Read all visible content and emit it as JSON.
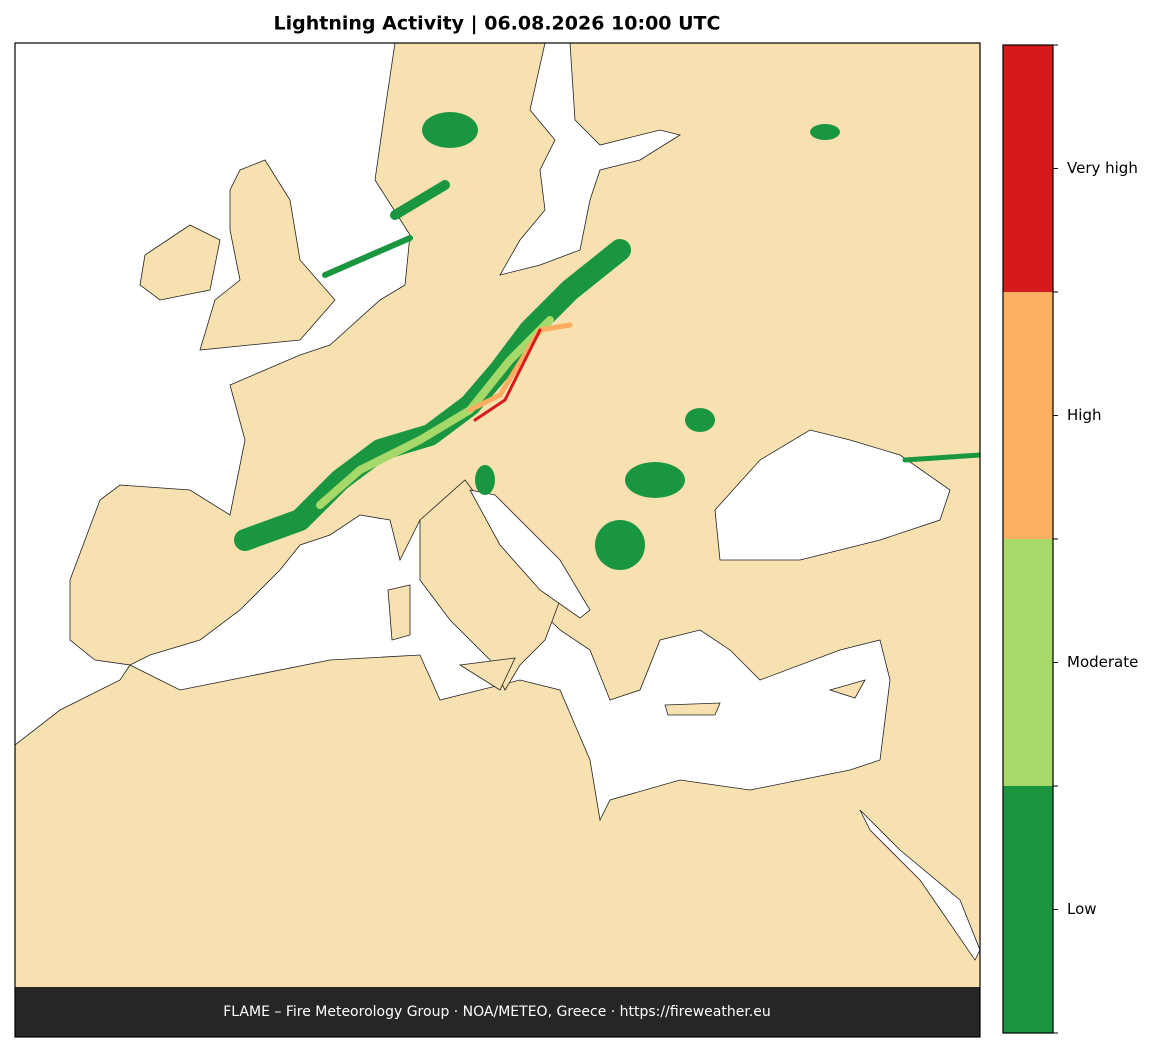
{
  "title": "Lightning Activity  |  06.08.2026 10:00 UTC",
  "footer": "FLAME – Fire Meteorology Group · NOA/METEO, Greece · https://fireweather.eu",
  "legend": {
    "levels": [
      {
        "label": "Low",
        "color": "#1a9641"
      },
      {
        "label": "Moderate",
        "color": "#a6d96a"
      },
      {
        "label": "High",
        "color": "#fdae61"
      },
      {
        "label": "Very high",
        "color": "#d7191c"
      }
    ]
  }
}
